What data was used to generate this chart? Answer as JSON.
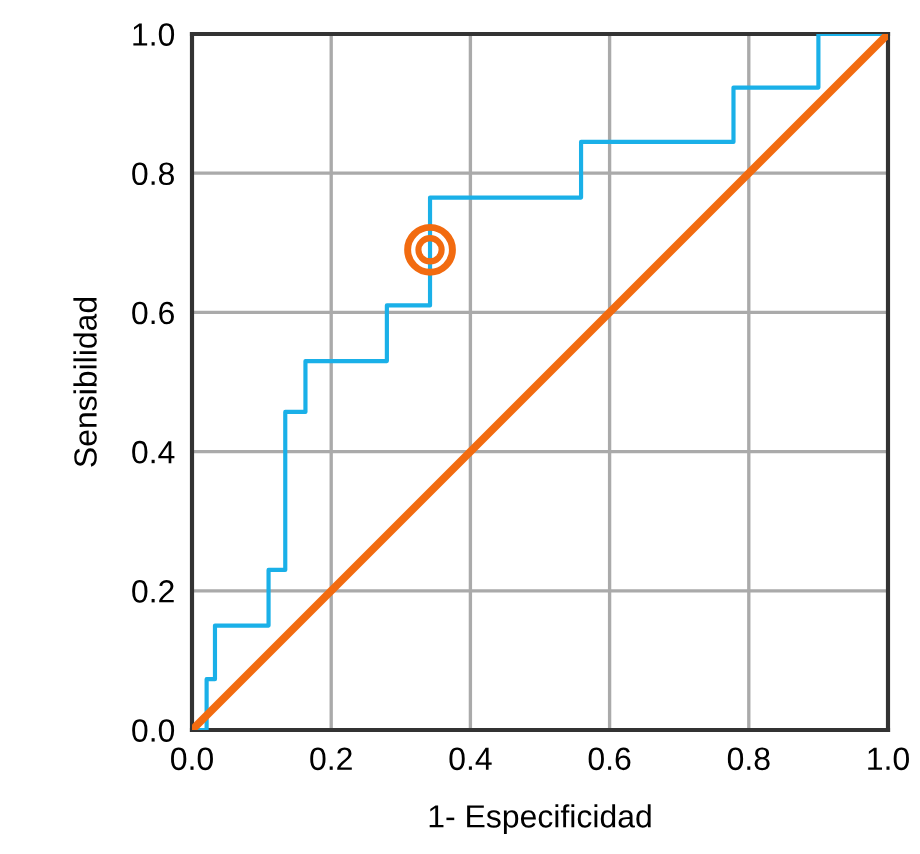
{
  "chart_data": {
    "type": "line",
    "xlabel": "1- Especificidad",
    "ylabel": "Sensibilidad",
    "series": [
      {
        "type": "step",
        "color": "#1ab0e8",
        "x": [
          0,
          0.021,
          0.033,
          0.11,
          0.134,
          0.163,
          0.28,
          0.342,
          0.559,
          0.778,
          0.9,
          1.0
        ],
        "values": [
          0,
          0.073,
          0.15,
          0.23,
          0.457,
          0.53,
          0.61,
          0.765,
          0.845,
          0.923,
          1.0,
          1.0
        ]
      },
      {
        "color": "#f26b10",
        "x": [
          0,
          1
        ],
        "values": [
          0,
          1
        ]
      },
      {
        "type": "scatter",
        "color": "#f26b10",
        "x": [
          0.342
        ],
        "values": [
          0.69
        ]
      }
    ],
    "xlim": [
      0,
      1
    ],
    "ylim": [
      0,
      1
    ],
    "xticks": [
      {
        "value": 0,
        "label": "0.0"
      },
      0.2,
      0.4,
      0.6,
      0.8,
      {
        "value": 1,
        "label": "1.0"
      }
    ],
    "yticks": [
      {
        "value": 0,
        "label": "0.0"
      },
      0.2,
      0.4,
      0.6,
      0.8,
      {
        "value": 1,
        "label": "1.0"
      }
    ],
    "grid": true
  }
}
